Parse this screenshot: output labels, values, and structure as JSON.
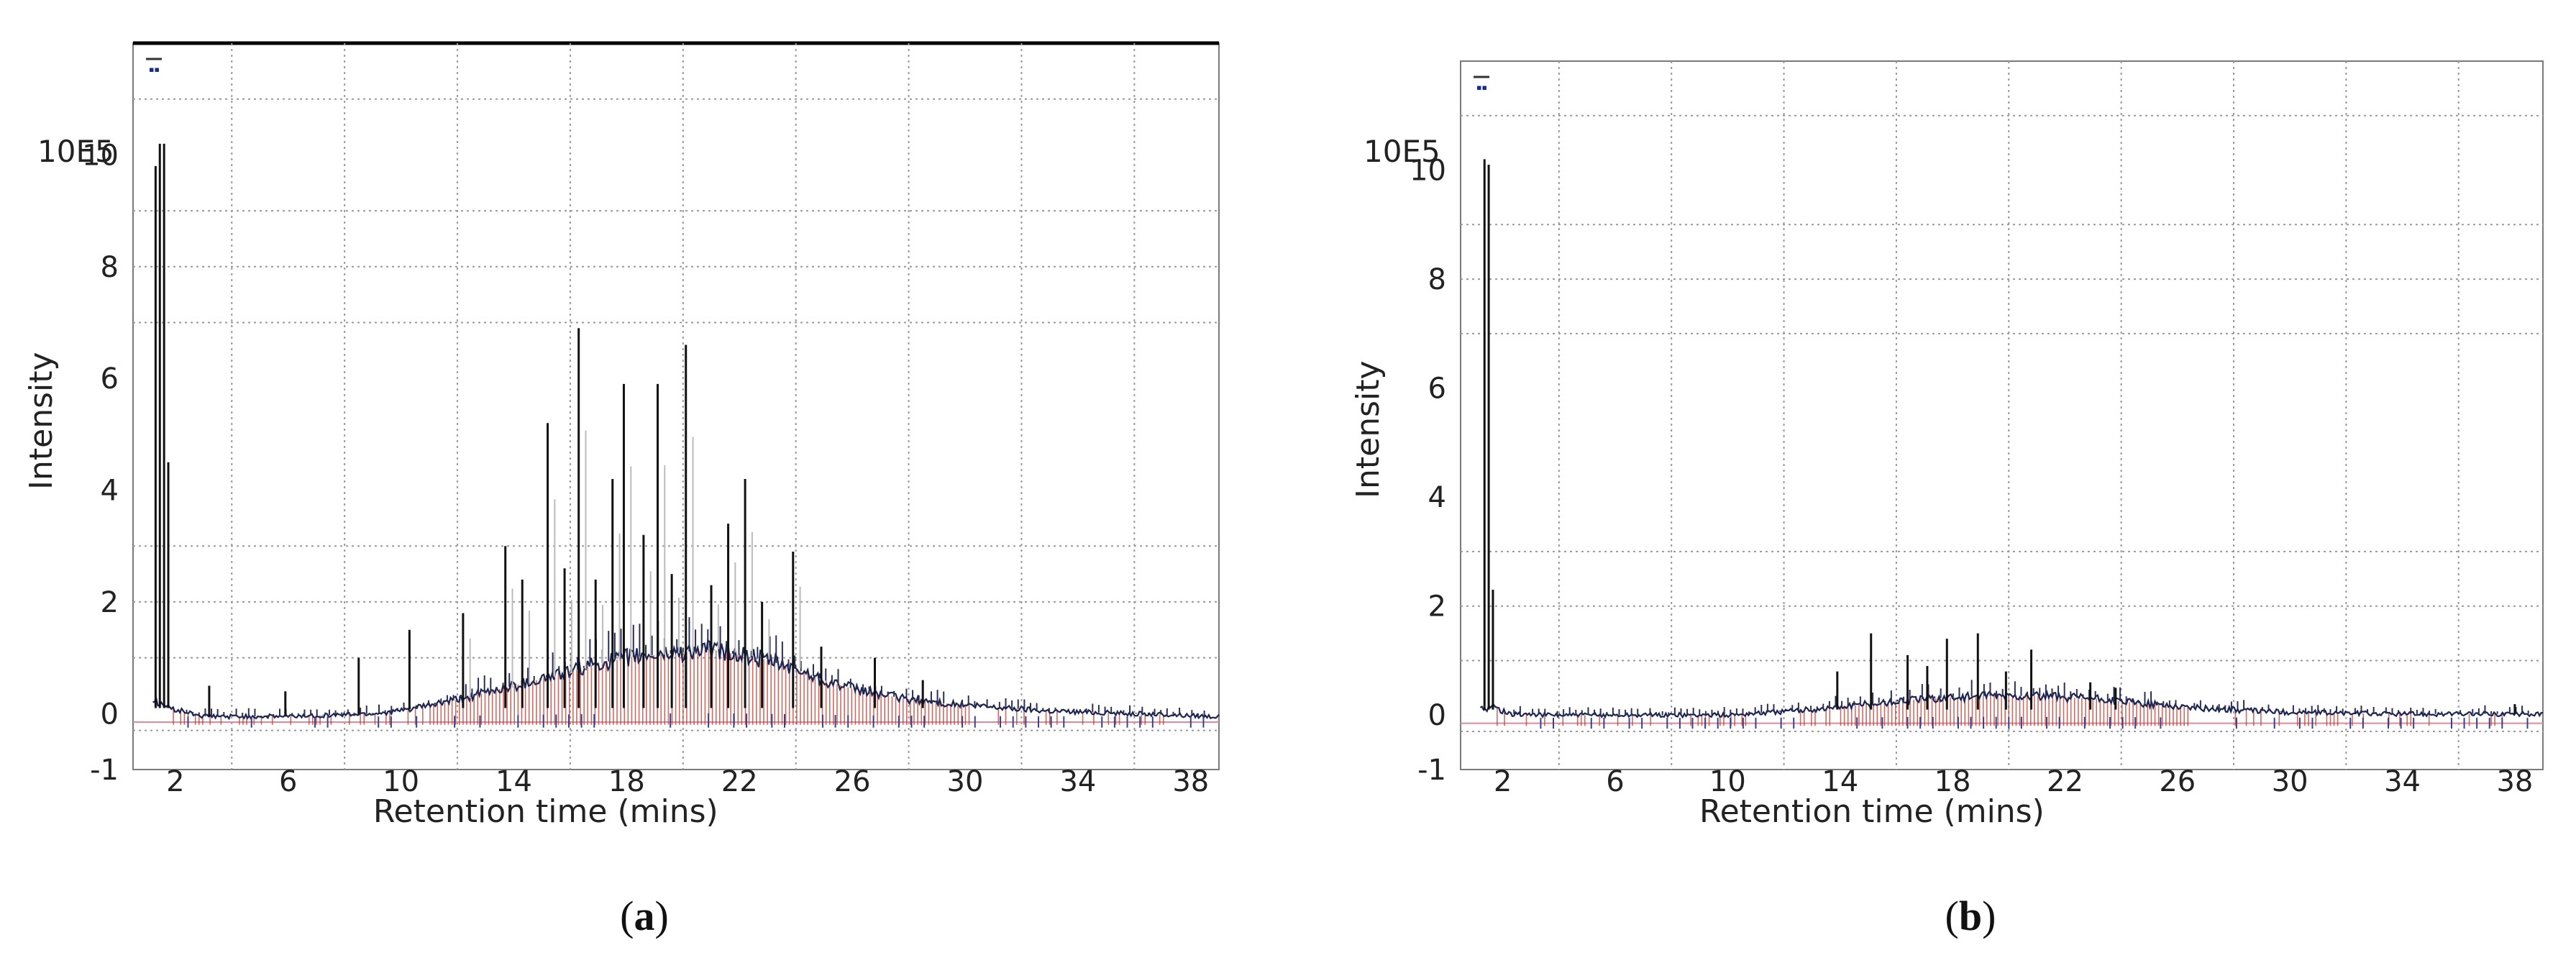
{
  "chart_data": [
    {
      "id": "a",
      "type": "line",
      "panel_label": "a",
      "xlabel": "Retention time (mins)",
      "ylabel": "Intensity",
      "y_scale_label": "10E5",
      "xlim": [
        0.5,
        39
      ],
      "ylim": [
        -1,
        12
      ],
      "x_ticks": [
        2,
        6,
        10,
        14,
        18,
        22,
        26,
        30,
        34,
        38
      ],
      "y_ticks": [
        -1,
        0,
        2,
        4,
        6,
        8,
        10
      ],
      "grid": true,
      "baseline": [
        [
          1.2,
          0.25
        ],
        [
          1.8,
          0.1
        ],
        [
          3,
          -0.05
        ],
        [
          6,
          -0.05
        ],
        [
          9,
          0.0
        ],
        [
          10,
          0.05
        ],
        [
          12,
          0.25
        ],
        [
          14,
          0.5
        ],
        [
          16,
          0.75
        ],
        [
          17,
          0.9
        ],
        [
          18,
          1.0
        ],
        [
          20,
          1.1
        ],
        [
          21,
          1.15
        ],
        [
          22,
          1.05
        ],
        [
          23,
          0.95
        ],
        [
          24,
          0.8
        ],
        [
          25,
          0.6
        ],
        [
          26,
          0.45
        ],
        [
          27,
          0.35
        ],
        [
          28,
          0.25
        ],
        [
          30,
          0.15
        ],
        [
          33,
          0.05
        ],
        [
          36,
          0.0
        ],
        [
          39,
          -0.05
        ]
      ],
      "peaks": [
        [
          1.3,
          9.8
        ],
        [
          1.45,
          10.2
        ],
        [
          1.6,
          10.2
        ],
        [
          1.75,
          4.5
        ],
        [
          3.2,
          0.5
        ],
        [
          5.9,
          0.4
        ],
        [
          8.5,
          1.0
        ],
        [
          10.3,
          1.5
        ],
        [
          12.2,
          1.8
        ],
        [
          13.7,
          3.0
        ],
        [
          14.3,
          2.4
        ],
        [
          15.2,
          5.2
        ],
        [
          15.8,
          2.6
        ],
        [
          16.3,
          6.9
        ],
        [
          16.9,
          2.4
        ],
        [
          17.5,
          4.2
        ],
        [
          17.9,
          5.9
        ],
        [
          18.6,
          3.2
        ],
        [
          19.1,
          5.9
        ],
        [
          19.6,
          2.5
        ],
        [
          20.1,
          6.6
        ],
        [
          21.0,
          2.3
        ],
        [
          21.6,
          3.4
        ],
        [
          22.2,
          4.2
        ],
        [
          22.8,
          2.0
        ],
        [
          23.9,
          2.9
        ],
        [
          24.9,
          1.2
        ],
        [
          26.8,
          1.0
        ],
        [
          28.5,
          0.6
        ]
      ]
    },
    {
      "id": "b",
      "type": "line",
      "panel_label": "b",
      "xlabel": "Retention time (mins)",
      "ylabel": "Intensity",
      "y_scale_label": "10E5",
      "xlim": [
        0.5,
        39
      ],
      "ylim": [
        -1,
        12
      ],
      "x_ticks": [
        2,
        6,
        10,
        14,
        18,
        22,
        26,
        30,
        34,
        38
      ],
      "y_ticks": [
        -1,
        0,
        2,
        4,
        6,
        8,
        10
      ],
      "grid": true,
      "baseline": [
        [
          1.2,
          0.1
        ],
        [
          1.7,
          0.15
        ],
        [
          2.2,
          0.02
        ],
        [
          4,
          0.0
        ],
        [
          10,
          0.0
        ],
        [
          13,
          0.1
        ],
        [
          15,
          0.2
        ],
        [
          17,
          0.3
        ],
        [
          19,
          0.35
        ],
        [
          21,
          0.35
        ],
        [
          23,
          0.3
        ],
        [
          25,
          0.2
        ],
        [
          27,
          0.12
        ],
        [
          30,
          0.05
        ],
        [
          34,
          0.02
        ],
        [
          39,
          0.02
        ]
      ],
      "peaks": [
        [
          1.35,
          10.2
        ],
        [
          1.5,
          10.1
        ],
        [
          1.65,
          2.3
        ],
        [
          13.9,
          0.8
        ],
        [
          15.1,
          1.5
        ],
        [
          16.4,
          1.1
        ],
        [
          17.1,
          0.9
        ],
        [
          17.8,
          1.4
        ],
        [
          18.9,
          1.5
        ],
        [
          19.9,
          0.8
        ],
        [
          20.8,
          1.2
        ],
        [
          22.9,
          0.6
        ],
        [
          23.8,
          0.5
        ],
        [
          38.0,
          0.2
        ]
      ]
    }
  ]
}
